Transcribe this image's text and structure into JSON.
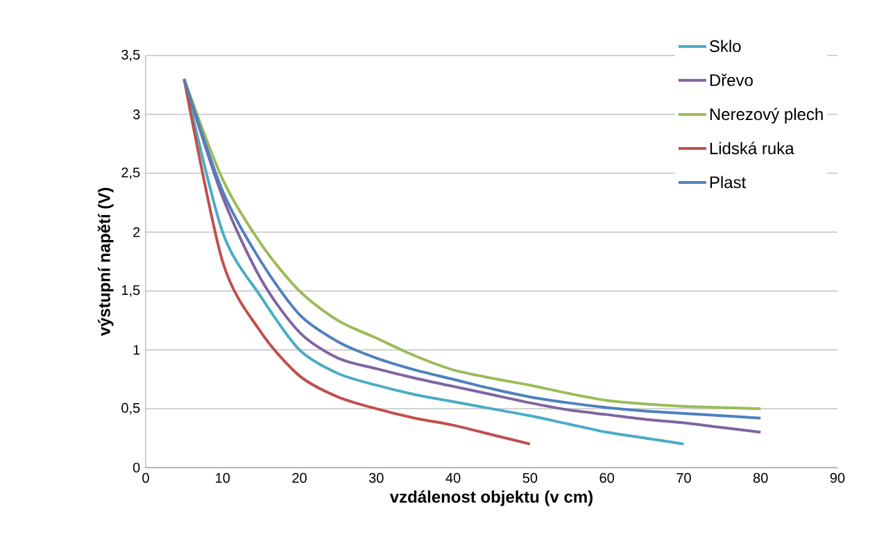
{
  "chart_data": {
    "type": "line",
    "xlabel": "vzdálenost objektu (v cm)",
    "ylabel": "výstupní napětí (V)",
    "x": [
      5,
      10,
      15,
      20,
      25,
      30,
      35,
      40,
      45,
      50,
      55,
      60,
      65,
      70,
      75,
      80
    ],
    "series": [
      {
        "name": "Sklo",
        "color": "#4bacc6",
        "values": [
          3.3,
          2.0,
          1.45,
          1.0,
          0.8,
          0.7,
          0.62,
          0.56,
          0.5,
          0.44,
          0.37,
          0.3,
          0.25,
          0.2,
          null,
          null
        ]
      },
      {
        "name": "Dřevo",
        "color": "#8064a2",
        "values": [
          3.3,
          2.3,
          1.6,
          1.15,
          0.93,
          0.84,
          0.76,
          0.69,
          0.62,
          0.55,
          0.49,
          0.45,
          0.41,
          0.38,
          0.34,
          0.3
        ]
      },
      {
        "name": "Nerezový plech",
        "color": "#9bbb59",
        "values": [
          3.3,
          2.45,
          1.9,
          1.5,
          1.25,
          1.1,
          0.95,
          0.83,
          0.76,
          0.7,
          0.63,
          0.57,
          0.54,
          0.52,
          0.51,
          0.5
        ]
      },
      {
        "name": "Lidská ruka",
        "color": "#c0504d",
        "values": [
          3.3,
          1.75,
          1.15,
          0.78,
          0.6,
          0.5,
          0.42,
          0.36,
          0.28,
          0.2,
          null,
          null,
          null,
          null,
          null,
          null
        ]
      },
      {
        "name": "Plast",
        "color": "#4f81bd",
        "values": [
          3.3,
          2.35,
          1.75,
          1.3,
          1.07,
          0.93,
          0.83,
          0.75,
          0.67,
          0.6,
          0.55,
          0.51,
          0.48,
          0.46,
          0.44,
          0.42
        ]
      }
    ],
    "xlim": [
      0,
      90
    ],
    "xticks": [
      0,
      10,
      20,
      30,
      40,
      50,
      60,
      70,
      80,
      90
    ],
    "ylim": [
      0,
      3.5
    ],
    "yticks": [
      0,
      {
        "value": 0.5,
        "label": "0,5"
      },
      1,
      {
        "value": 1.5,
        "label": "1,5"
      },
      2,
      {
        "value": 2.5,
        "label": "2,5"
      },
      3,
      {
        "value": 3.5,
        "label": "3,5"
      }
    ],
    "grid": "y",
    "legend": "top right",
    "marker": "none",
    "line_style": "solid"
  }
}
